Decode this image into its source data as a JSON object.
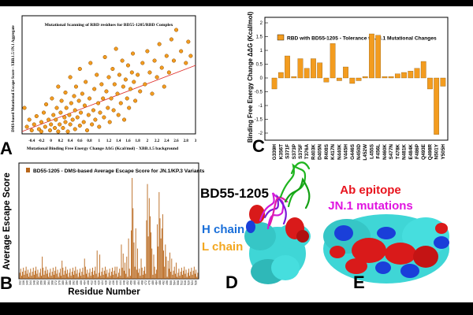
{
  "panel_letters": {
    "A": "A",
    "B": "B",
    "C": "C",
    "D": "D",
    "E": "E"
  },
  "colors": {
    "orange": "#f39c1f",
    "bar_brown": "#b8661a",
    "fit_line": "#e0302c",
    "red": "#d91a1a",
    "blue": "#1a3fd9",
    "magenta": "#d21ad9",
    "cyan": "#3fd6d6"
  },
  "structure_labels": {
    "complex_name": "BD55-1205",
    "h_chain": "H chain",
    "l_chain": "L chain",
    "ab_epitope": "Ab epitope",
    "jn1_mutations": "JN.1 mutations"
  },
  "chart_data": [
    {
      "panel": "A",
      "type": "scatter",
      "title": "Mutational Scanning of RBD residues for BD55-1205/RBD Complex",
      "xlabel": "Mutational Binding Free Energy Change ΔΔG (Kcal/mol) - XBB.1.5 background",
      "ylabel": "DMS-based Mutational Escape Score - XBB.1.5/JN.1 Aggregate",
      "xlim": [
        -0.6,
        3.0
      ],
      "ylim": [
        0,
        1.0
      ],
      "xticks": [
        "-0.4",
        "-0.2",
        "0",
        "0.2",
        "0.4",
        "0.6",
        "0.8",
        "1",
        "1.2",
        "1.4",
        "1.6",
        "1.8",
        "2",
        "2.2",
        "2.4",
        "2.6",
        "2.8",
        "3"
      ],
      "fit_line": {
        "x": [
          -0.6,
          3.0
        ],
        "y": [
          0.02,
          0.58
        ]
      },
      "points": [
        [
          -0.55,
          0.22
        ],
        [
          -0.5,
          0.06
        ],
        [
          -0.45,
          0.12
        ],
        [
          -0.4,
          0.03
        ],
        [
          -0.35,
          0.08
        ],
        [
          -0.3,
          0.15
        ],
        [
          -0.25,
          0.04
        ],
        [
          -0.2,
          0.02
        ],
        [
          -0.2,
          0.1
        ],
        [
          -0.15,
          0.18
        ],
        [
          -0.12,
          0.06
        ],
        [
          -0.1,
          0.25
        ],
        [
          -0.05,
          0.12
        ],
        [
          -0.02,
          0.03
        ],
        [
          0.0,
          0.08
        ],
        [
          0.02,
          0.3
        ],
        [
          0.05,
          0.16
        ],
        [
          0.08,
          0.05
        ],
        [
          0.1,
          0.12
        ],
        [
          0.12,
          0.22
        ],
        [
          0.15,
          0.02
        ],
        [
          0.15,
          0.4
        ],
        [
          0.18,
          0.08
        ],
        [
          0.2,
          0.18
        ],
        [
          0.22,
          0.28
        ],
        [
          0.25,
          0.05
        ],
        [
          0.28,
          0.14
        ],
        [
          0.3,
          0.1
        ],
        [
          0.3,
          0.35
        ],
        [
          0.32,
          0.22
        ],
        [
          0.35,
          0.02
        ],
        [
          0.38,
          0.16
        ],
        [
          0.4,
          0.08
        ],
        [
          0.4,
          0.48
        ],
        [
          0.42,
          0.26
        ],
        [
          0.45,
          0.12
        ],
        [
          0.48,
          0.32
        ],
        [
          0.5,
          0.04
        ],
        [
          0.5,
          0.2
        ],
        [
          0.52,
          0.4
        ],
        [
          0.55,
          0.14
        ],
        [
          0.58,
          0.28
        ],
        [
          0.6,
          0.07
        ],
        [
          0.6,
          0.55
        ],
        [
          0.62,
          0.18
        ],
        [
          0.65,
          0.34
        ],
        [
          0.68,
          0.1
        ],
        [
          0.7,
          0.24
        ],
        [
          0.72,
          0.44
        ],
        [
          0.75,
          0.03
        ],
        [
          0.78,
          0.16
        ],
        [
          0.8,
          0.3
        ],
        [
          0.82,
          0.6
        ],
        [
          0.85,
          0.08
        ],
        [
          0.88,
          0.2
        ],
        [
          0.9,
          0.38
        ],
        [
          0.92,
          0.12
        ],
        [
          0.95,
          0.5
        ],
        [
          0.98,
          0.26
        ],
        [
          1.0,
          0.06
        ],
        [
          1.02,
          0.18
        ],
        [
          1.05,
          0.42
        ],
        [
          1.08,
          0.3
        ],
        [
          1.1,
          0.14
        ],
        [
          1.12,
          0.65
        ],
        [
          1.15,
          0.36
        ],
        [
          1.18,
          0.22
        ],
        [
          1.2,
          0.48
        ],
        [
          1.22,
          0.1
        ],
        [
          1.25,
          0.3
        ],
        [
          1.28,
          0.55
        ],
        [
          1.3,
          0.2
        ],
        [
          1.32,
          0.42
        ],
        [
          1.35,
          0.72
        ],
        [
          1.38,
          0.34
        ],
        [
          1.4,
          0.16
        ],
        [
          1.42,
          0.5
        ],
        [
          1.45,
          0.26
        ],
        [
          1.48,
          0.62
        ],
        [
          1.5,
          0.4
        ],
        [
          1.52,
          0.12
        ],
        [
          1.55,
          0.46
        ],
        [
          1.58,
          0.3
        ],
        [
          1.6,
          0.58
        ],
        [
          1.62,
          0.22
        ],
        [
          1.65,
          0.38
        ],
        [
          1.68,
          0.52
        ],
        [
          1.7,
          0.68
        ],
        [
          1.72,
          0.44
        ],
        [
          1.75,
          0.28
        ],
        [
          1.8,
          0.5
        ],
        [
          1.85,
          0.36
        ],
        [
          1.9,
          0.6
        ],
        [
          1.95,
          0.42
        ],
        [
          2.0,
          0.7
        ],
        [
          2.05,
          0.52
        ],
        [
          2.1,
          0.34
        ],
        [
          2.15,
          0.62
        ],
        [
          2.2,
          0.48
        ],
        [
          2.25,
          0.76
        ],
        [
          2.3,
          0.56
        ],
        [
          2.35,
          0.4
        ],
        [
          2.4,
          0.66
        ],
        [
          2.45,
          0.52
        ],
        [
          2.5,
          0.8
        ],
        [
          2.55,
          0.62
        ],
        [
          2.6,
          0.88
        ],
        [
          2.7,
          0.7
        ],
        [
          2.8,
          0.6
        ],
        [
          2.85,
          0.78
        ],
        [
          2.9,
          0.66
        ]
      ]
    },
    {
      "panel": "B",
      "type": "bar",
      "legend": "BD55-1205 - DMS-based Average Escape Score for JN.1/KP.3 Variants",
      "xlabel": "Residue Number",
      "ylabel": "Average Escape Score",
      "xlim": [
        330,
        530
      ],
      "ylim": [
        0,
        1.0
      ],
      "peaks": [
        {
          "x": 356,
          "y": 0.22
        },
        {
          "x": 378,
          "y": 0.18
        },
        {
          "x": 403,
          "y": 0.2
        },
        {
          "x": 417,
          "y": 0.28
        },
        {
          "x": 420,
          "y": 0.24
        },
        {
          "x": 439,
          "y": 0.12
        },
        {
          "x": 444,
          "y": 0.34
        },
        {
          "x": 446,
          "y": 0.25
        },
        {
          "x": 448,
          "y": 0.16
        },
        {
          "x": 450,
          "y": 0.22
        },
        {
          "x": 452,
          "y": 0.4
        },
        {
          "x": 455,
          "y": 0.48
        },
        {
          "x": 456,
          "y": 1.0
        },
        {
          "x": 457,
          "y": 0.7
        },
        {
          "x": 458,
          "y": 0.36
        },
        {
          "x": 460,
          "y": 0.5
        },
        {
          "x": 462,
          "y": 0.3
        },
        {
          "x": 466,
          "y": 0.2
        },
        {
          "x": 472,
          "y": 0.58
        },
        {
          "x": 473,
          "y": 0.94
        },
        {
          "x": 474,
          "y": 0.42
        },
        {
          "x": 475,
          "y": 0.8
        },
        {
          "x": 476,
          "y": 0.62
        },
        {
          "x": 477,
          "y": 0.46
        },
        {
          "x": 478,
          "y": 0.3
        },
        {
          "x": 480,
          "y": 0.24
        },
        {
          "x": 484,
          "y": 0.54
        },
        {
          "x": 485,
          "y": 0.32
        },
        {
          "x": 486,
          "y": 0.86
        },
        {
          "x": 487,
          "y": 0.6
        },
        {
          "x": 488,
          "y": 0.4
        },
        {
          "x": 489,
          "y": 0.5
        },
        {
          "x": 490,
          "y": 0.64
        },
        {
          "x": 491,
          "y": 0.28
        },
        {
          "x": 493,
          "y": 0.34
        },
        {
          "x": 494,
          "y": 0.22
        },
        {
          "x": 496,
          "y": 0.18
        },
        {
          "x": 498,
          "y": 0.26
        },
        {
          "x": 500,
          "y": 0.2
        },
        {
          "x": 505,
          "y": 0.16
        }
      ]
    },
    {
      "panel": "C",
      "type": "bar",
      "legend": "RBD with BD55-1205 - Tolerance to JN.1 Mutational Changes",
      "ylabel": "Binding Free Energy Change ΔΔG (Kcal/mol)",
      "ylim": [
        -2.2,
        2.2
      ],
      "yticks": [
        "-2",
        "-1.5",
        "-1",
        "-0.5",
        "0",
        "0.5",
        "1",
        "1.5",
        "2"
      ],
      "categories": [
        "G339H",
        "K356T",
        "S371F",
        "S373P",
        "S375F",
        "T376A",
        "R403K",
        "D405N",
        "R408S",
        "K417N",
        "N440K",
        "V445H",
        "G446S",
        "N450D",
        "L452W",
        "L455S",
        "F456L",
        "N460K",
        "S477N",
        "T478K",
        "N481K",
        "E484K",
        "F486P",
        "Q493E",
        "Q498R",
        "N501Y",
        "Y505H"
      ],
      "values": [
        -0.4,
        0.2,
        0.8,
        0.05,
        0.7,
        0.35,
        0.7,
        0.55,
        -0.15,
        1.25,
        -0.1,
        0.4,
        -0.2,
        -0.1,
        0.05,
        1.6,
        1.55,
        0.05,
        0.05,
        0.15,
        0.2,
        0.25,
        0.35,
        0.6,
        -0.4,
        -2.05,
        -0.3
      ]
    }
  ]
}
